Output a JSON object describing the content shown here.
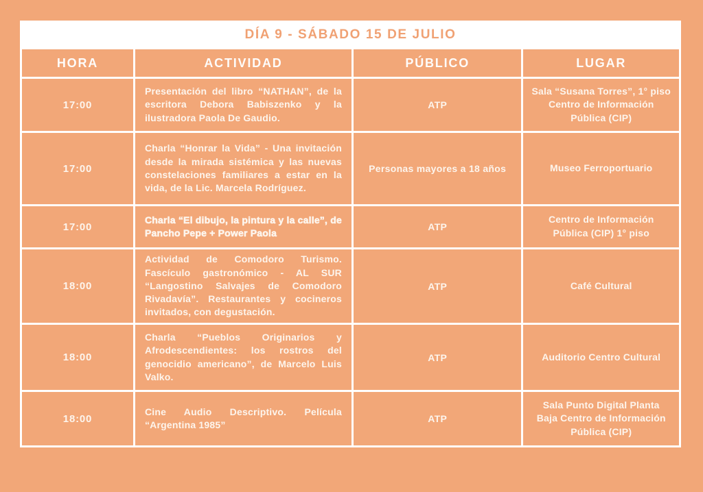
{
  "title": "DÍA 9 - SÁBADO 15 DE JULIO",
  "columns": {
    "hora": "HORA",
    "actividad": "ACTIVIDAD",
    "publico": "PÚBLICO",
    "lugar": "LUGAR"
  },
  "rows": [
    {
      "hora": "17:00",
      "actividad": "Presentación del libro “NATHAN”, de la escritora Debora Babiszenko y la ilustradora Paola De Gaudio.",
      "publico": "ATP",
      "lugar": "Sala “Susana Torres”, 1° piso Centro de Información Pública (CIP)"
    },
    {
      "hora": "17:00",
      "actividad": "Charla “Honrar la Vida” - Una invitación desde la mirada sistémica y las nuevas constelaciones familiares a estar en la vida, de la Lic. Marcela Rodríguez.",
      "publico": "Personas mayores a 18 años",
      "lugar": "Museo Ferroportuario"
    },
    {
      "hora": "17:00",
      "actividad": "Charla “El dibujo, la pintura y la calle”, de Pancho Pepe + Power Paola",
      "publico": "ATP",
      "lugar": "Centro de Información Pública (CIP) 1° piso"
    },
    {
      "hora": "18:00",
      "actividad": "Actividad de Comodoro Turismo. Fascículo gastronómico - AL SUR “Langostino Salvajes de Comodoro Rivadavía”. Restaurantes y cocineros invitados, con degustación.",
      "publico": "ATP",
      "lugar": "Café Cultural"
    },
    {
      "hora": "18:00",
      "actividad": "Charla “Pueblos Originarios y Afrodescendientes: los rostros del genocidio americano”, de Marcelo Luis Valko.",
      "publico": "ATP",
      "lugar": "Auditorio Centro Cultural"
    },
    {
      "hora": "18:00",
      "actividad": "Cine Audio Descriptivo. Película “Argentina 1985”",
      "publico": "ATP",
      "lugar": "Sala Punto Digital Planta Baja Centro de Información Pública (CIP)"
    }
  ],
  "colors": {
    "background": "#F2A778",
    "grid_lines": "#FFFFFF",
    "title_text": "#F0A173",
    "cell_text": "#FDF5ED"
  }
}
